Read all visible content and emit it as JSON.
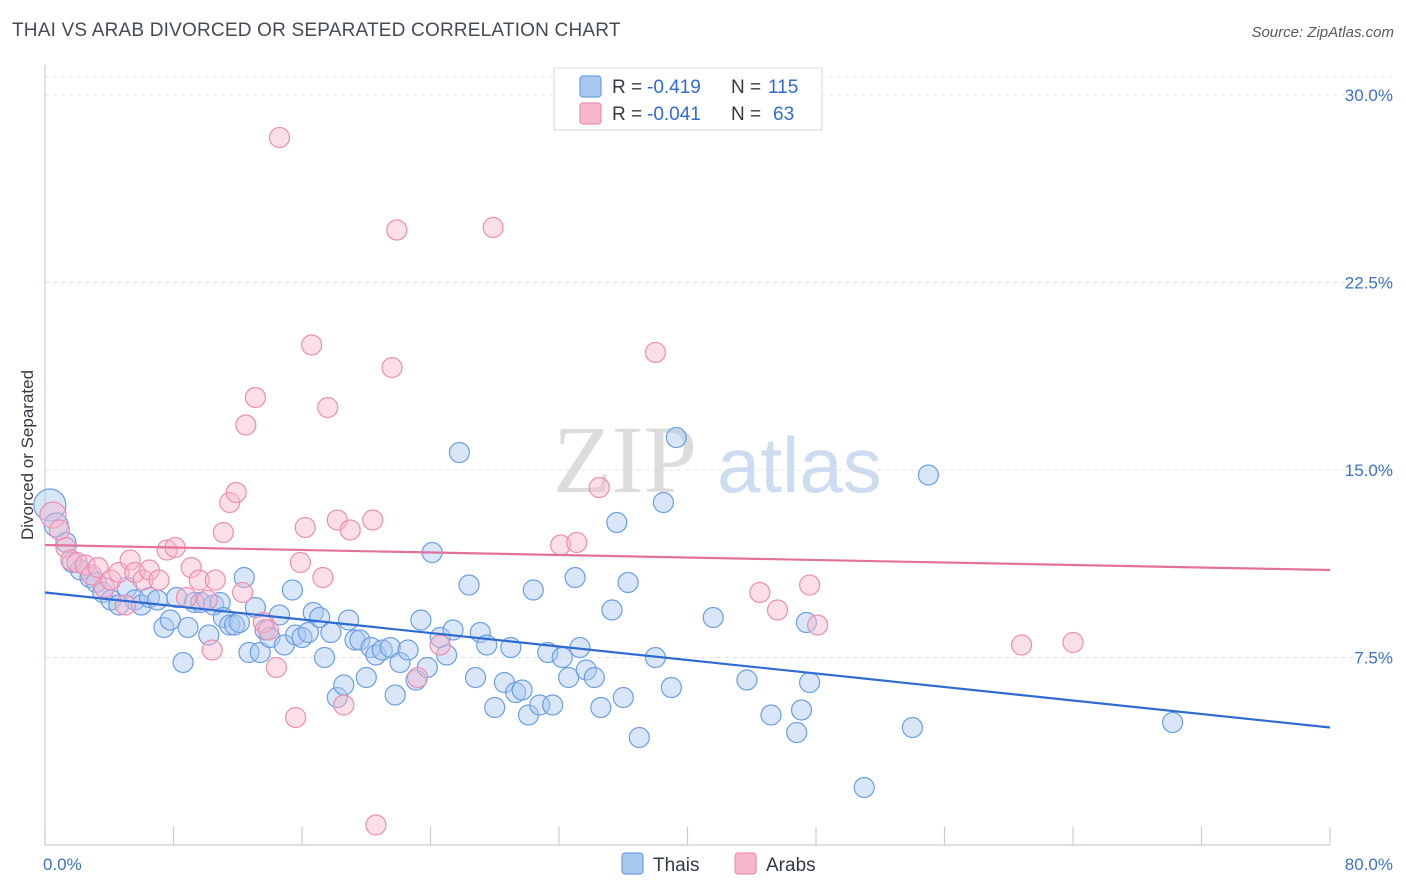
{
  "title": "THAI VS ARAB DIVORCED OR SEPARATED CORRELATION CHART",
  "source": "Source: ZipAtlas.com",
  "watermark": {
    "zip": "ZIP",
    "atlas": "atlas"
  },
  "legend": {
    "rows": [
      {
        "r_label": "R =",
        "r_value": "-0.419",
        "n_label": "N =",
        "n_value": "115",
        "color": "#a8c8f0"
      },
      {
        "r_label": "R =",
        "r_value": "-0.041",
        "n_label": "N =",
        "n_value": "63",
        "color": "#f7b8cc"
      }
    ]
  },
  "bottom_legend": [
    {
      "label": "Thais",
      "color": "#a8c8f0"
    },
    {
      "label": "Arabs",
      "color": "#f7b8cc"
    }
  ],
  "chart_data": {
    "type": "scatter",
    "title": "THAI VS ARAB DIVORCED OR SEPARATED CORRELATION CHART",
    "xlabel": "",
    "ylabel": "Divorced or Separated",
    "xlim": [
      0,
      80
    ],
    "ylim": [
      0,
      31.2
    ],
    "x_tick_labels": [
      "0.0%",
      "80.0%"
    ],
    "y_ticks": [
      7.5,
      15.0,
      22.5,
      30.0
    ],
    "y_tick_labels": [
      "7.5%",
      "15.0%",
      "22.5%",
      "30.0%"
    ],
    "grid": true,
    "series": [
      {
        "name": "Thais",
        "color": "#6d9fe0",
        "fill": "#a8c8f0",
        "trend": {
          "x": [
            0,
            80
          ],
          "y": [
            10.1,
            4.7
          ],
          "color": "#2f6bd1"
        },
        "points": [
          [
            0.3,
            13.6
          ],
          [
            0.7,
            12.8
          ],
          [
            1.3,
            12.1
          ],
          [
            1.7,
            11.3
          ],
          [
            2.2,
            11.0
          ],
          [
            2.8,
            10.7
          ],
          [
            3.2,
            10.5
          ],
          [
            3.6,
            10.1
          ],
          [
            4.1,
            9.8
          ],
          [
            4.6,
            9.6
          ],
          [
            5.1,
            10.3
          ],
          [
            5.6,
            9.8
          ],
          [
            6.0,
            9.6
          ],
          [
            6.5,
            9.9
          ],
          [
            7.0,
            9.8
          ],
          [
            7.4,
            8.7
          ],
          [
            7.8,
            9.0
          ],
          [
            8.2,
            9.9
          ],
          [
            8.6,
            7.3
          ],
          [
            8.9,
            8.7
          ],
          [
            9.3,
            9.7
          ],
          [
            9.7,
            9.7
          ],
          [
            10.2,
            8.4
          ],
          [
            10.5,
            9.6
          ],
          [
            10.9,
            9.7
          ],
          [
            11.1,
            9.1
          ],
          [
            11.5,
            8.8
          ],
          [
            11.8,
            8.8
          ],
          [
            12.1,
            8.9
          ],
          [
            12.4,
            10.7
          ],
          [
            12.7,
            7.7
          ],
          [
            13.1,
            9.5
          ],
          [
            13.4,
            7.7
          ],
          [
            13.7,
            8.6
          ],
          [
            14.0,
            8.3
          ],
          [
            14.6,
            9.2
          ],
          [
            14.9,
            8.0
          ],
          [
            15.4,
            10.2
          ],
          [
            15.6,
            8.4
          ],
          [
            16.0,
            8.3
          ],
          [
            16.4,
            8.5
          ],
          [
            16.7,
            9.3
          ],
          [
            17.1,
            9.1
          ],
          [
            17.4,
            7.5
          ],
          [
            17.8,
            8.5
          ],
          [
            18.2,
            5.9
          ],
          [
            18.6,
            6.4
          ],
          [
            18.9,
            9.0
          ],
          [
            19.3,
            8.2
          ],
          [
            19.6,
            8.2
          ],
          [
            20.0,
            6.7
          ],
          [
            20.3,
            7.9
          ],
          [
            20.6,
            7.6
          ],
          [
            21.0,
            7.8
          ],
          [
            21.5,
            7.9
          ],
          [
            21.8,
            6.0
          ],
          [
            22.1,
            7.3
          ],
          [
            22.6,
            7.8
          ],
          [
            23.1,
            6.6
          ],
          [
            23.4,
            9.0
          ],
          [
            23.8,
            7.1
          ],
          [
            24.1,
            11.7
          ],
          [
            24.6,
            8.3
          ],
          [
            25.0,
            7.6
          ],
          [
            25.4,
            8.6
          ],
          [
            25.8,
            15.7
          ],
          [
            26.4,
            10.4
          ],
          [
            26.8,
            6.7
          ],
          [
            27.1,
            8.5
          ],
          [
            27.5,
            8.0
          ],
          [
            28.0,
            5.5
          ],
          [
            28.6,
            6.5
          ],
          [
            29.0,
            7.9
          ],
          [
            29.3,
            6.1
          ],
          [
            29.7,
            6.2
          ],
          [
            30.1,
            5.2
          ],
          [
            30.4,
            10.2
          ],
          [
            30.8,
            5.6
          ],
          [
            31.3,
            7.7
          ],
          [
            31.6,
            5.6
          ],
          [
            32.2,
            7.5
          ],
          [
            32.6,
            6.7
          ],
          [
            33.0,
            10.7
          ],
          [
            33.3,
            7.9
          ],
          [
            33.7,
            7.0
          ],
          [
            34.2,
            6.7
          ],
          [
            34.6,
            5.5
          ],
          [
            35.3,
            9.4
          ],
          [
            35.6,
            12.9
          ],
          [
            36.0,
            5.9
          ],
          [
            36.3,
            10.5
          ],
          [
            37.0,
            4.3
          ],
          [
            38.0,
            7.5
          ],
          [
            38.5,
            13.7
          ],
          [
            39.0,
            6.3
          ],
          [
            39.3,
            16.3
          ],
          [
            41.6,
            9.1
          ],
          [
            43.7,
            6.6
          ],
          [
            45.2,
            5.2
          ],
          [
            46.8,
            4.5
          ],
          [
            47.1,
            5.4
          ],
          [
            47.4,
            8.9
          ],
          [
            47.6,
            6.5
          ],
          [
            51.0,
            2.3
          ],
          [
            54.0,
            4.7
          ],
          [
            55.0,
            14.8
          ],
          [
            70.2,
            4.9
          ]
        ]
      },
      {
        "name": "Arabs",
        "color": "#ec8fb0",
        "fill": "#f7b8cc",
        "trend": {
          "x": [
            0,
            80
          ],
          "y": [
            12.0,
            11.0
          ],
          "color": "#e2729a"
        },
        "points": [
          [
            0.5,
            13.2
          ],
          [
            0.9,
            12.6
          ],
          [
            1.3,
            11.9
          ],
          [
            1.6,
            11.4
          ],
          [
            2.0,
            11.3
          ],
          [
            2.5,
            11.2
          ],
          [
            2.9,
            10.8
          ],
          [
            3.3,
            11.1
          ],
          [
            3.7,
            10.3
          ],
          [
            4.1,
            10.6
          ],
          [
            4.6,
            10.9
          ],
          [
            5.0,
            9.6
          ],
          [
            5.3,
            11.4
          ],
          [
            5.6,
            10.9
          ],
          [
            6.1,
            10.6
          ],
          [
            6.5,
            11.0
          ],
          [
            7.1,
            10.6
          ],
          [
            7.6,
            11.8
          ],
          [
            8.1,
            11.9
          ],
          [
            8.8,
            9.9
          ],
          [
            9.1,
            11.1
          ],
          [
            9.6,
            10.6
          ],
          [
            10.1,
            9.8
          ],
          [
            10.4,
            7.8
          ],
          [
            10.6,
            10.6
          ],
          [
            11.1,
            12.5
          ],
          [
            11.5,
            13.7
          ],
          [
            11.9,
            14.1
          ],
          [
            12.3,
            10.1
          ],
          [
            12.5,
            16.8
          ],
          [
            13.1,
            17.9
          ],
          [
            13.6,
            8.9
          ],
          [
            13.9,
            8.6
          ],
          [
            14.4,
            7.1
          ],
          [
            14.6,
            28.3
          ],
          [
            15.6,
            5.1
          ],
          [
            15.9,
            11.3
          ],
          [
            16.2,
            12.7
          ],
          [
            16.6,
            20.0
          ],
          [
            17.3,
            10.7
          ],
          [
            17.6,
            17.5
          ],
          [
            18.2,
            13.0
          ],
          [
            18.6,
            5.6
          ],
          [
            19.0,
            12.6
          ],
          [
            20.4,
            13.0
          ],
          [
            20.6,
            0.8
          ],
          [
            21.6,
            19.1
          ],
          [
            21.9,
            24.6
          ],
          [
            23.2,
            6.7
          ],
          [
            24.6,
            8.0
          ],
          [
            27.9,
            24.7
          ],
          [
            32.1,
            12.0
          ],
          [
            33.1,
            12.1
          ],
          [
            34.5,
            14.3
          ],
          [
            38.0,
            19.7
          ],
          [
            44.5,
            10.1
          ],
          [
            45.6,
            9.4
          ],
          [
            47.6,
            10.4
          ],
          [
            48.1,
            8.8
          ],
          [
            60.8,
            8.0
          ],
          [
            64.0,
            8.1
          ]
        ]
      }
    ]
  }
}
